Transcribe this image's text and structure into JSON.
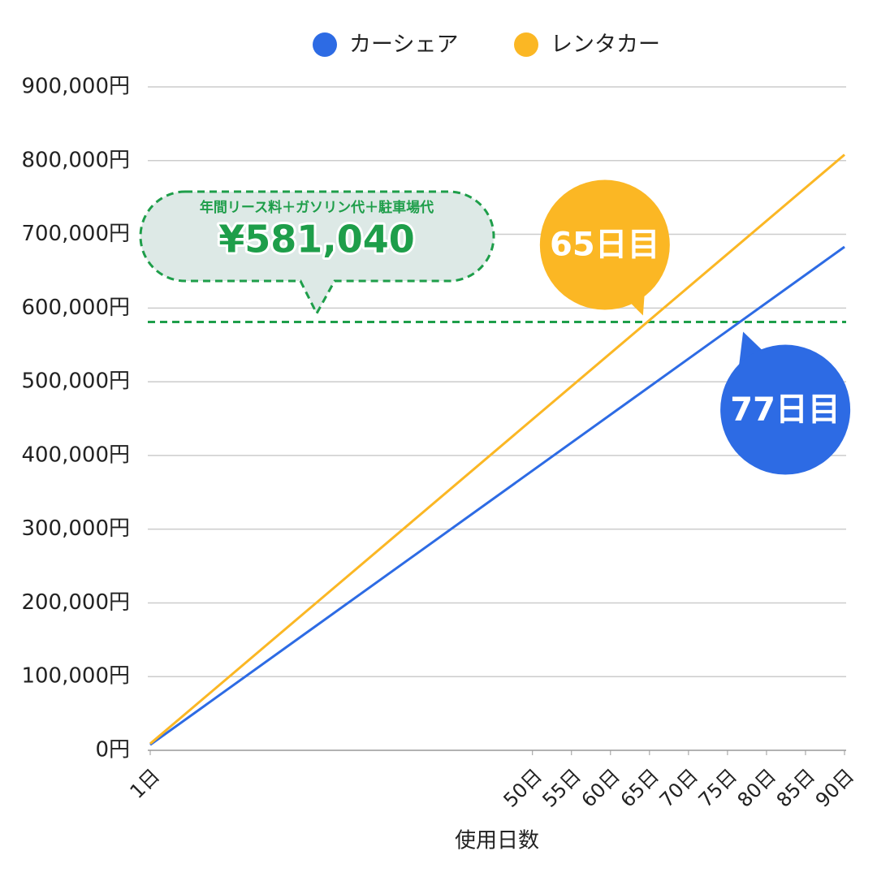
{
  "chart_data": {
    "type": "line",
    "x_label": "使用日数",
    "x": [
      1,
      90
    ],
    "xlim": [
      1,
      90
    ],
    "xticks": [
      {
        "value": 1,
        "label": "1日"
      },
      {
        "value": 50,
        "label": "50日"
      },
      {
        "value": 55,
        "label": "55日"
      },
      {
        "value": 60,
        "label": "60日"
      },
      {
        "value": 65,
        "label": "65日"
      },
      {
        "value": 70,
        "label": "70日"
      },
      {
        "value": 75,
        "label": "75日"
      },
      {
        "value": 80,
        "label": "80日"
      },
      {
        "value": 85,
        "label": "85日"
      },
      {
        "value": 90,
        "label": "90日"
      }
    ],
    "ylim": [
      0,
      900000
    ],
    "yticks": [
      {
        "value": 0,
        "label": "0円"
      },
      {
        "value": 100000,
        "label": "100,000円"
      },
      {
        "value": 200000,
        "label": "200,000円"
      },
      {
        "value": 300000,
        "label": "300,000円"
      },
      {
        "value": 400000,
        "label": "400,000円"
      },
      {
        "value": 500000,
        "label": "500,000円"
      },
      {
        "value": 600000,
        "label": "600,000円"
      },
      {
        "value": 700000,
        "label": "700,000円"
      },
      {
        "value": 800000,
        "label": "800,000円"
      },
      {
        "value": 900000,
        "label": "900,000円"
      }
    ],
    "grid": true,
    "legend": "top",
    "series": [
      {
        "name": "カーシェア",
        "color": "#2d6be4",
        "values": [
          7500,
          683000
        ]
      },
      {
        "name": "レンタカー",
        "color": "#fbb724",
        "values": [
          9000,
          808000
        ]
      }
    ],
    "hline": {
      "value": 581040,
      "label": "¥581,040",
      "caption": "年間リース料＋ガソリン代＋駐車場代",
      "color": "#1e9e4a"
    },
    "callouts": [
      {
        "x": 65,
        "label": "65日目",
        "color": "#fbb724"
      },
      {
        "x": 77,
        "label": "77日目",
        "color": "#2d6be4"
      }
    ]
  }
}
